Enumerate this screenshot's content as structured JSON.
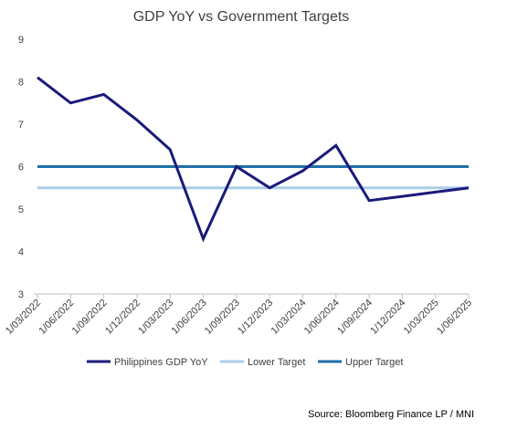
{
  "chart_data": {
    "type": "line",
    "title": "GDP YoY vs Government Targets",
    "xlabel": "",
    "ylabel": "",
    "ylim": [
      3,
      9
    ],
    "yticks": [
      3,
      4,
      5,
      6,
      7,
      8,
      9
    ],
    "grid": false,
    "legend_position": "bottom",
    "categories": [
      "1/03/2022",
      "1/06/2022",
      "1/09/2022",
      "1/12/2022",
      "1/03/2023",
      "1/06/2023",
      "1/09/2023",
      "1/12/2023",
      "1/03/2024",
      "1/06/2024",
      "1/09/2024",
      "1/12/2024",
      "1/03/2025",
      "1/06/2025"
    ],
    "series": [
      {
        "name": "Philippines GDP YoY",
        "color": "#1a1a7a",
        "values": [
          8.1,
          7.5,
          7.7,
          7.1,
          6.4,
          4.3,
          6.0,
          5.5,
          5.9,
          6.5,
          5.2,
          5.3,
          5.4,
          5.5
        ]
      },
      {
        "name": "Lower Target",
        "color": "#a9cde8",
        "values": [
          5.5,
          5.5,
          5.5,
          5.5,
          5.5,
          5.5,
          5.5,
          5.5,
          5.5,
          5.5,
          5.5,
          5.5,
          5.5,
          5.5
        ]
      },
      {
        "name": "Upper Target",
        "color": "#1f6fa8",
        "values": [
          6.0,
          6.0,
          6.0,
          6.0,
          6.0,
          6.0,
          6.0,
          6.0,
          6.0,
          6.0,
          6.0,
          6.0,
          6.0,
          6.0
        ]
      }
    ],
    "source": "Source: Bloomberg Finance LP / MNI"
  }
}
